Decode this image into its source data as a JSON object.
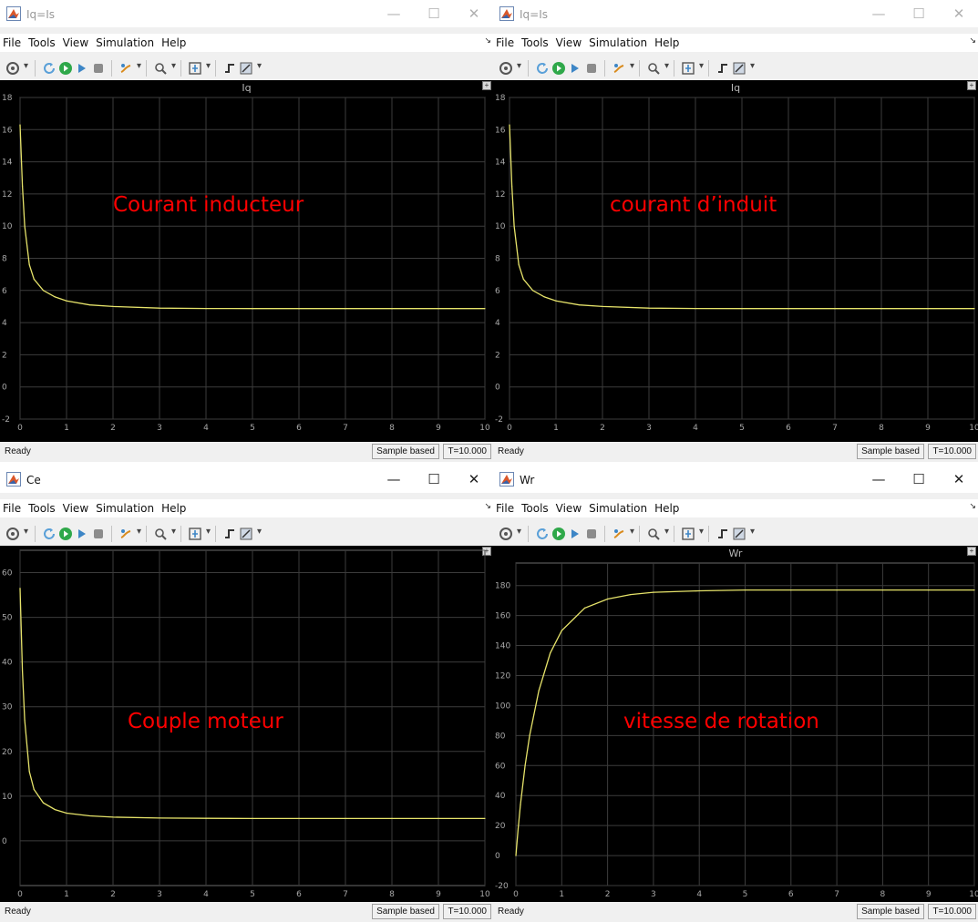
{
  "windows": [
    {
      "title": "Iq=Is",
      "active": false,
      "menu": [
        "File",
        "Tools",
        "View",
        "Simulation",
        "Help"
      ],
      "axes_title": "Iq",
      "annotation": "Courant inducteur",
      "status": {
        "ready": "Ready",
        "mode": "Sample based",
        "time": "T=10.000"
      }
    },
    {
      "title": "Iq=Is",
      "active": false,
      "menu": [
        "File",
        "Tools",
        "View",
        "Simulation",
        "Help"
      ],
      "axes_title": "Iq",
      "annotation": "courant d’induit",
      "status": {
        "ready": "Ready",
        "mode": "Sample based",
        "time": "T=10.000"
      }
    },
    {
      "title": "Ce",
      "active": true,
      "menu": [
        "File",
        "Tools",
        "View",
        "Simulation",
        "Help"
      ],
      "axes_title": "",
      "annotation": "Couple moteur",
      "status": {
        "ready": "Ready",
        "mode": "Sample based",
        "time": "T=10.000"
      }
    },
    {
      "title": "Wr",
      "active": true,
      "menu": [
        "File",
        "Tools",
        "View",
        "Simulation",
        "Help"
      ],
      "axes_title": "Wr",
      "annotation": "vitesse de rotation",
      "status": {
        "ready": "Ready",
        "mode": "Sample based",
        "time": "T=10.000"
      }
    }
  ],
  "window_controls": {
    "minimize": "—",
    "maximize": "☐",
    "close": "✕"
  },
  "colors": {
    "plot_bg": "#000000",
    "grid": "#3c3c3c",
    "trace": "#e6e36a",
    "tick_text": "#a8a8a8",
    "annotation": "#ff0000"
  },
  "icons": [
    "settings-icon",
    "restore-icon",
    "run-icon",
    "step-forward-icon",
    "stop-icon",
    "highlight-icon",
    "zoom-icon",
    "scale-axes-icon",
    "triggers-icon",
    "style-icon"
  ],
  "chart_data": [
    {
      "type": "line",
      "title": "Iq",
      "x": [
        0,
        0.05,
        0.1,
        0.2,
        0.3,
        0.5,
        0.75,
        1,
        1.5,
        2,
        3,
        4,
        5,
        6,
        7,
        8,
        9,
        10
      ],
      "y": [
        16.3,
        12.5,
        10.0,
        7.6,
        6.7,
        6.0,
        5.6,
        5.35,
        5.1,
        5.0,
        4.9,
        4.88,
        4.87,
        4.87,
        4.87,
        4.87,
        4.87,
        4.87
      ],
      "xlim": [
        0,
        10
      ],
      "ylim": [
        -2,
        18
      ],
      "xticks": [
        0,
        1,
        2,
        3,
        4,
        5,
        6,
        7,
        8,
        9,
        10
      ],
      "yticks": [
        -2,
        0,
        2,
        4,
        6,
        8,
        10,
        12,
        14,
        16,
        18
      ],
      "grid": true
    },
    {
      "type": "line",
      "title": "Iq",
      "x": [
        0,
        0.05,
        0.1,
        0.2,
        0.3,
        0.5,
        0.75,
        1,
        1.5,
        2,
        3,
        4,
        5,
        6,
        7,
        8,
        9,
        10
      ],
      "y": [
        16.3,
        12.5,
        10.0,
        7.6,
        6.7,
        6.0,
        5.6,
        5.35,
        5.1,
        5.0,
        4.9,
        4.88,
        4.87,
        4.87,
        4.87,
        4.87,
        4.87,
        4.87
      ],
      "xlim": [
        0,
        10
      ],
      "ylim": [
        -2,
        18
      ],
      "xticks": [
        0,
        1,
        2,
        3,
        4,
        5,
        6,
        7,
        8,
        9,
        10
      ],
      "yticks": [
        -2,
        0,
        2,
        4,
        6,
        8,
        10,
        12,
        14,
        16,
        18
      ],
      "grid": true
    },
    {
      "type": "line",
      "title": "",
      "x": [
        0,
        0.05,
        0.1,
        0.2,
        0.3,
        0.5,
        0.75,
        1,
        1.5,
        2,
        3,
        4,
        5,
        6,
        7,
        8,
        9,
        10
      ],
      "y": [
        56.5,
        38.0,
        27.0,
        15.5,
        11.5,
        8.5,
        7.0,
        6.2,
        5.6,
        5.3,
        5.1,
        5.05,
        5.0,
        5.0,
        5.0,
        5.0,
        5.0,
        5.0
      ],
      "xlim": [
        0,
        10
      ],
      "ylim": [
        -10,
        65
      ],
      "xticks": [
        0,
        1,
        2,
        3,
        4,
        5,
        6,
        7,
        8,
        9,
        10
      ],
      "yticks": [
        0,
        10,
        20,
        30,
        40,
        50,
        60
      ],
      "grid": true
    },
    {
      "type": "line",
      "title": "Wr",
      "x": [
        0,
        0.05,
        0.1,
        0.2,
        0.3,
        0.5,
        0.75,
        1,
        1.5,
        2,
        2.5,
        3,
        4,
        5,
        6,
        7,
        8,
        9,
        10
      ],
      "y": [
        0,
        18,
        34,
        60,
        80,
        110,
        135,
        150,
        165,
        171,
        174,
        175.5,
        176.5,
        177,
        177,
        177,
        177,
        177,
        177
      ],
      "xlim": [
        0,
        10
      ],
      "ylim": [
        -20,
        195
      ],
      "xticks": [
        0,
        1,
        2,
        3,
        4,
        5,
        6,
        7,
        8,
        9,
        10
      ],
      "yticks": [
        -20,
        0,
        20,
        40,
        60,
        80,
        100,
        120,
        140,
        160,
        180
      ],
      "grid": true
    }
  ]
}
